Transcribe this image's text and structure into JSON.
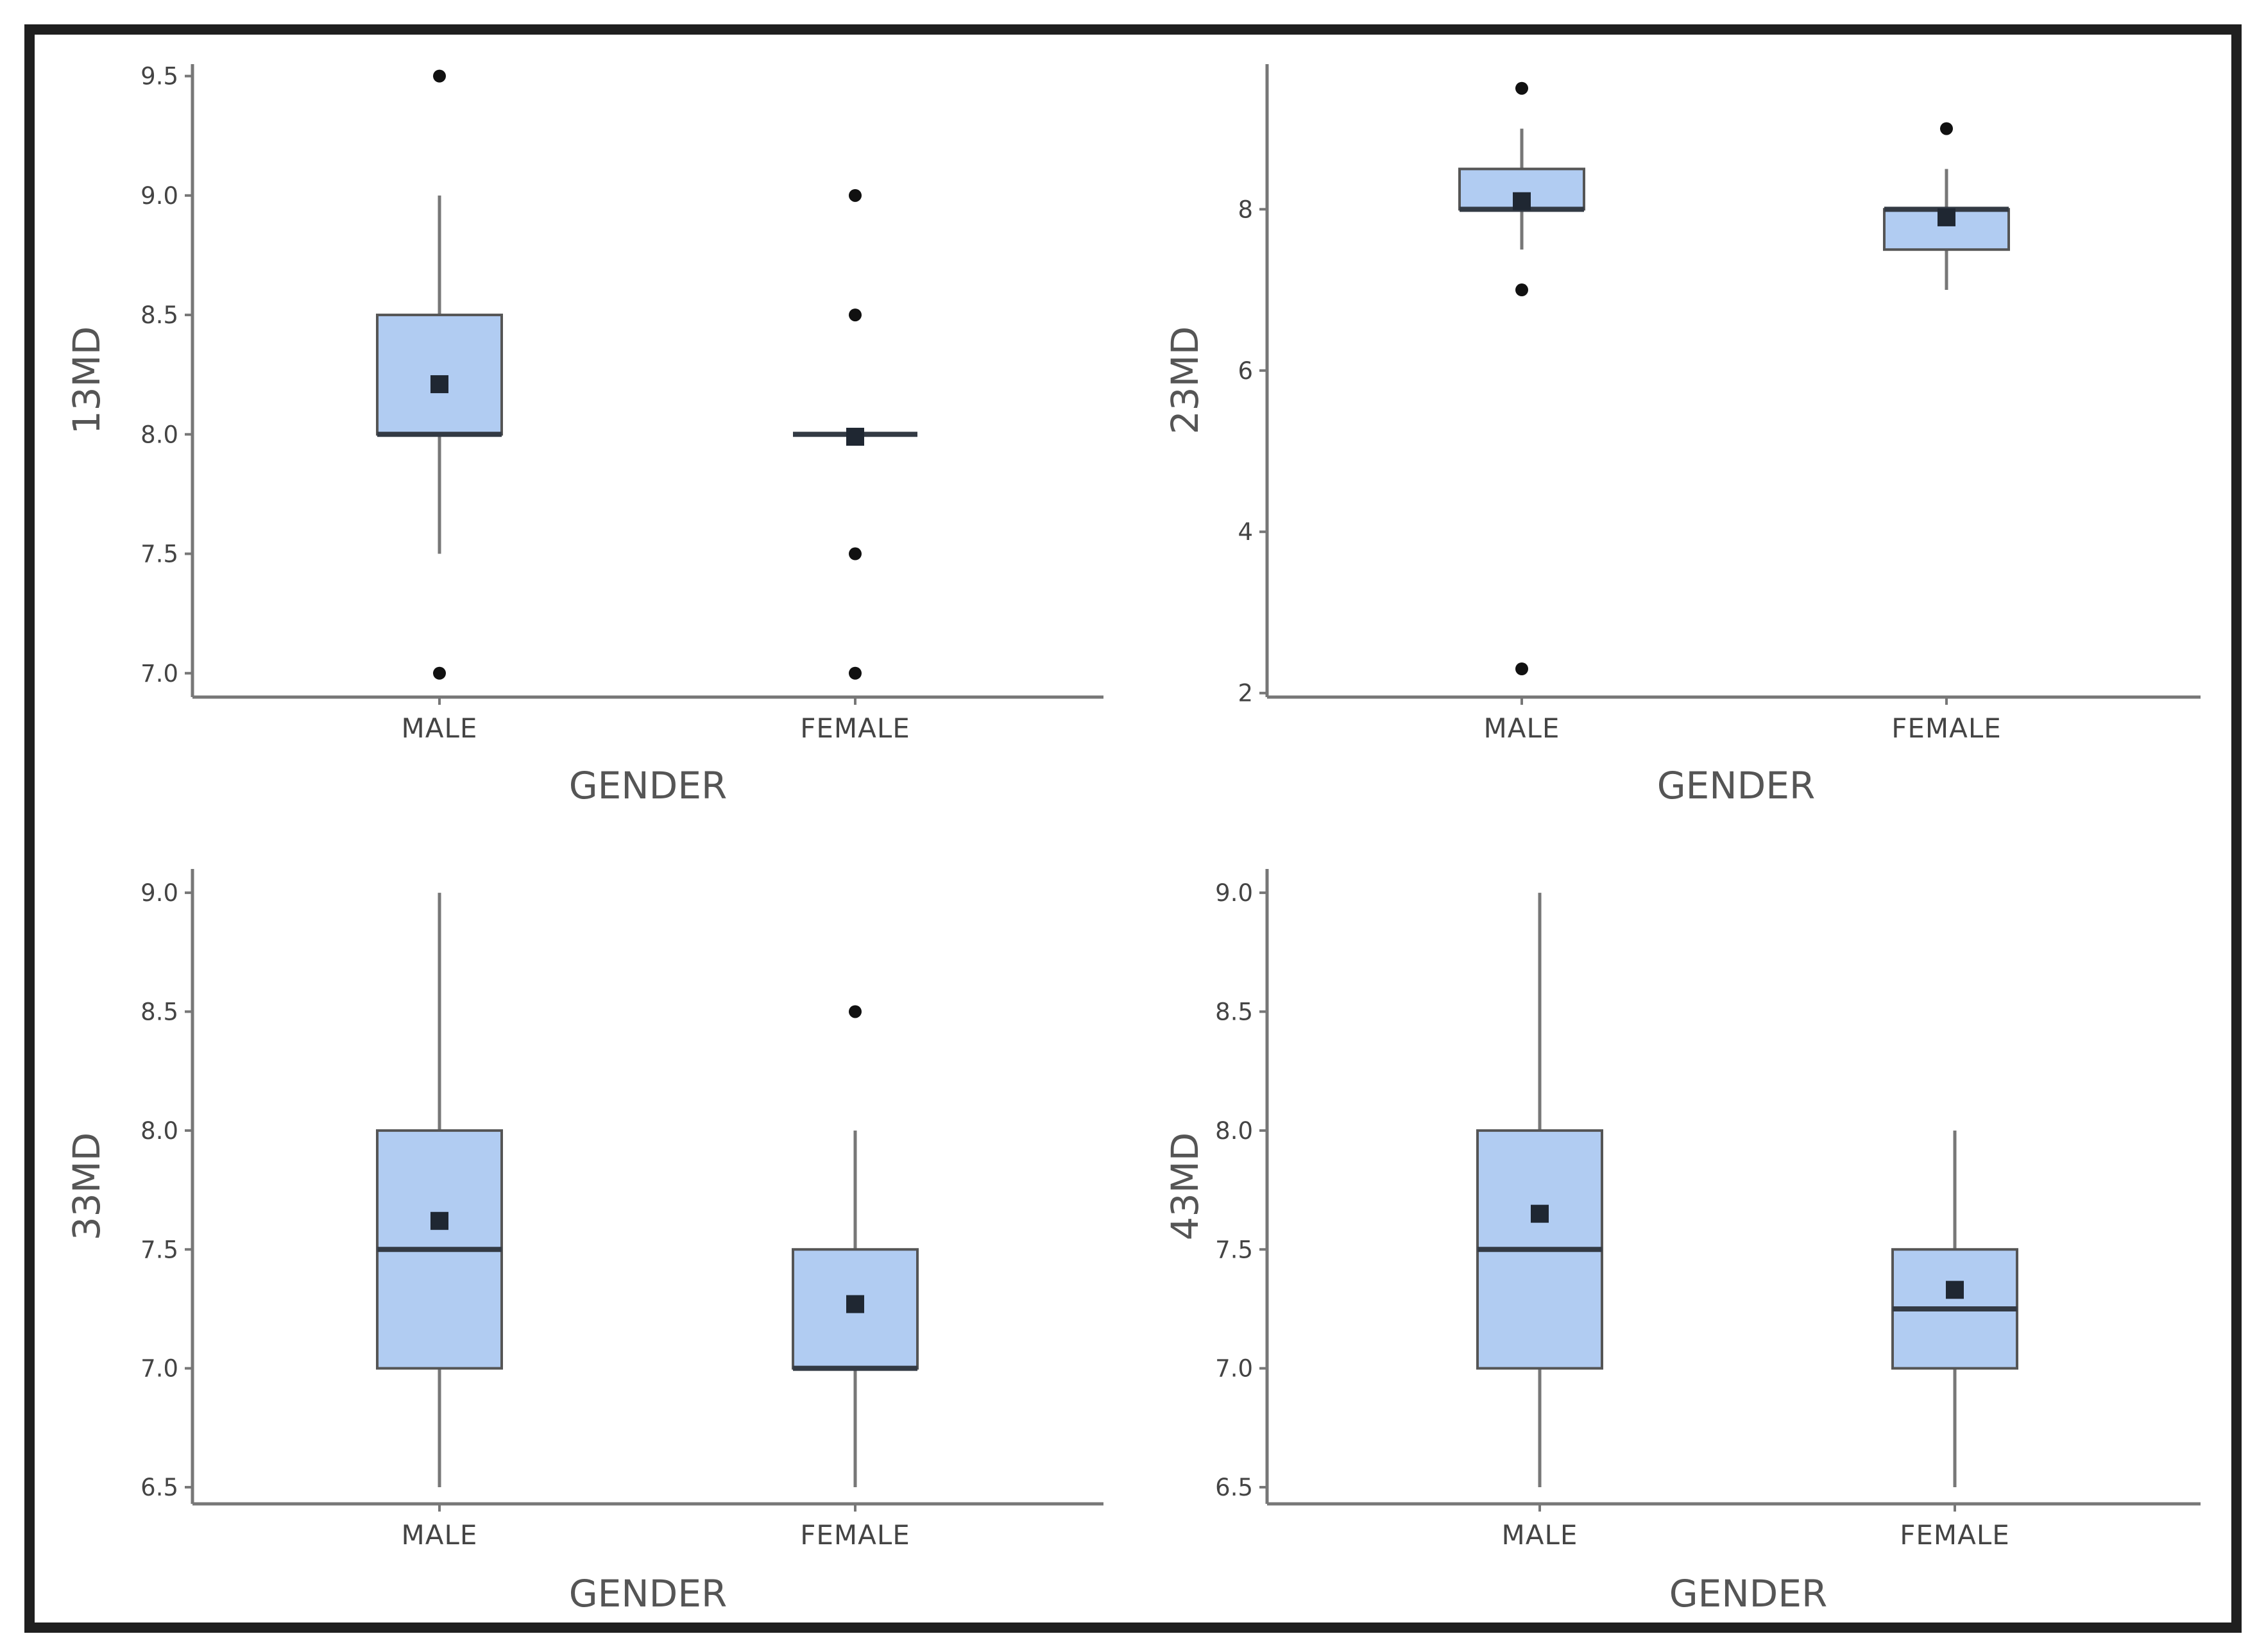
{
  "colors": {
    "box_fill": "#b1ccf2",
    "frame": "#1f1f1f",
    "axis": "#777777",
    "marker": "#1f2732"
  },
  "chart_data": [
    {
      "type": "boxplot",
      "panel": "top-left",
      "xlabel": "GENDER",
      "ylabel": "13MD",
      "categories": [
        "MALE",
        "FEMALE"
      ],
      "ylim": [
        6.9,
        9.55
      ],
      "yticks": [
        7.0,
        7.5,
        8.0,
        8.5,
        9.0,
        9.5
      ],
      "tick_labels": [
        "7.0",
        "7.5",
        "8.0",
        "8.5",
        "9.0",
        "9.5"
      ],
      "boxes": [
        {
          "category": "MALE",
          "whisker_low": 7.5,
          "q1": 8.0,
          "median": 8.0,
          "q3": 8.5,
          "whisker_high": 9.0,
          "mean": 8.21,
          "outliers": [
            7.0,
            9.5
          ]
        },
        {
          "category": "FEMALE",
          "whisker_low": 8.0,
          "q1": 8.0,
          "median": 8.0,
          "q3": 8.0,
          "whisker_high": 8.0,
          "mean": 7.99,
          "outliers": [
            7.0,
            7.5,
            8.5,
            9.0
          ]
        }
      ]
    },
    {
      "type": "boxplot",
      "panel": "top-right",
      "xlabel": "GENDER",
      "ylabel": "23MD",
      "categories": [
        "MALE",
        "FEMALE"
      ],
      "ylim": [
        1.95,
        9.8
      ],
      "yticks": [
        2,
        4,
        6,
        8
      ],
      "tick_labels": [
        "2",
        "4",
        "6",
        "8"
      ],
      "boxes": [
        {
          "category": "MALE",
          "whisker_low": 7.5,
          "q1": 8.0,
          "median": 8.0,
          "q3": 8.5,
          "whisker_high": 9.0,
          "mean": 8.1,
          "outliers": [
            2.3,
            7.0,
            9.5
          ]
        },
        {
          "category": "FEMALE",
          "whisker_low": 7.0,
          "q1": 7.5,
          "median": 8.0,
          "q3": 8.0,
          "whisker_high": 8.5,
          "mean": 7.9,
          "outliers": [
            9.0
          ]
        }
      ]
    },
    {
      "type": "boxplot",
      "panel": "bottom-left",
      "xlabel": "GENDER",
      "ylabel": "33MD",
      "categories": [
        "MALE",
        "FEMALE"
      ],
      "ylim": [
        6.43,
        9.1
      ],
      "yticks": [
        6.5,
        7.0,
        7.5,
        8.0,
        8.5,
        9.0
      ],
      "tick_labels": [
        "6.5",
        "7.0",
        "7.5",
        "8.0",
        "8.5",
        "9.0"
      ],
      "boxes": [
        {
          "category": "MALE",
          "whisker_low": 6.5,
          "q1": 7.0,
          "median": 7.5,
          "q3": 8.0,
          "whisker_high": 9.0,
          "mean": 7.62,
          "outliers": []
        },
        {
          "category": "FEMALE",
          "whisker_low": 6.5,
          "q1": 7.0,
          "median": 7.0,
          "q3": 7.5,
          "whisker_high": 8.0,
          "mean": 7.27,
          "outliers": [
            8.5
          ]
        }
      ]
    },
    {
      "type": "boxplot",
      "panel": "bottom-right",
      "xlabel": "GENDER",
      "ylabel": "43MD",
      "categories": [
        "MALE",
        "FEMALE"
      ],
      "ylim": [
        6.43,
        9.1
      ],
      "yticks": [
        6.5,
        7.0,
        7.5,
        8.0,
        8.5,
        9.0
      ],
      "tick_labels": [
        "6.5",
        "7.0",
        "7.5",
        "8.0",
        "8.5",
        "9.0"
      ],
      "boxes": [
        {
          "category": "MALE",
          "whisker_low": 6.5,
          "q1": 7.0,
          "median": 7.5,
          "q3": 8.0,
          "whisker_high": 9.0,
          "mean": 7.65,
          "outliers": []
        },
        {
          "category": "FEMALE",
          "whisker_low": 6.5,
          "q1": 7.0,
          "median": 7.25,
          "q3": 7.5,
          "whisker_high": 8.0,
          "mean": 7.33,
          "outliers": []
        }
      ]
    }
  ]
}
